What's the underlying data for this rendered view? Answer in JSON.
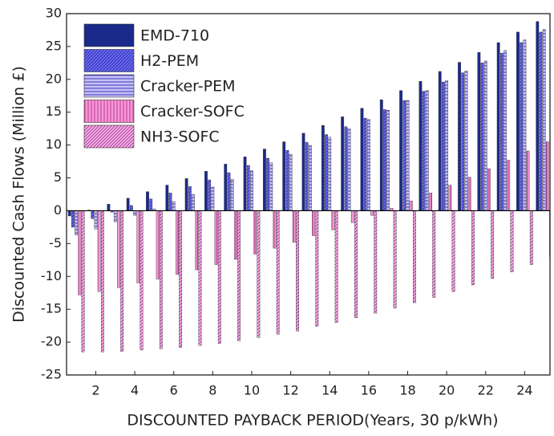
{
  "chart_data": {
    "type": "bar",
    "xlabel": "DISCOUNTED PAYBACK PERIOD(Years, 30 p/kWh)",
    "ylabel": "Discounted Cash Flows (Million £)",
    "x": [
      1,
      2,
      3,
      4,
      5,
      6,
      7,
      8,
      9,
      10,
      11,
      12,
      13,
      14,
      15,
      16,
      17,
      18,
      19,
      20,
      21,
      22,
      23,
      24,
      25
    ],
    "xlim": [
      0.5,
      25.3
    ],
    "xticks": [
      2,
      4,
      6,
      8,
      10,
      12,
      14,
      16,
      18,
      20,
      22,
      24
    ],
    "ylim": [
      -25,
      30
    ],
    "yticks": [
      -25,
      -20,
      -15,
      -10,
      -5,
      0,
      5,
      10,
      15,
      20,
      25,
      30
    ],
    "series": [
      {
        "name": "EMD-710",
        "color": "#1a2a8a",
        "values": [
          -0.8,
          0.1,
          1.0,
          1.9,
          2.9,
          3.9,
          4.9,
          6.0,
          7.1,
          8.2,
          9.4,
          10.5,
          11.8,
          13.0,
          14.3,
          15.6,
          16.9,
          18.3,
          19.7,
          21.2,
          22.6,
          24.1,
          25.6,
          27.2,
          28.8
        ]
      },
      {
        "name": "H2-PEM",
        "color": "#6a6aee",
        "values": [
          -2.5,
          -1.2,
          -0.2,
          0.8,
          1.8,
          2.7,
          3.7,
          4.7,
          5.8,
          6.9,
          8.0,
          9.2,
          10.4,
          11.6,
          12.8,
          14.1,
          15.4,
          16.8,
          18.2,
          19.6,
          21.0,
          22.5,
          24.0,
          25.6,
          27.2
        ]
      },
      {
        "name": "Cracker-PEM",
        "color": "#c8c0f8",
        "values": [
          -3.7,
          -2.8,
          -1.7,
          -0.7,
          0.3,
          1.4,
          2.5,
          3.6,
          4.8,
          6.1,
          7.3,
          8.6,
          9.9,
          11.2,
          12.5,
          13.9,
          15.3,
          16.8,
          18.3,
          19.8,
          21.3,
          22.8,
          24.4,
          26.0,
          27.6
        ]
      },
      {
        "name": "Cracker-SOFC",
        "color": "#f49ad4",
        "values": [
          -12.8,
          -12.3,
          -11.7,
          -11.0,
          -10.4,
          -9.7,
          -9.0,
          -8.2,
          -7.4,
          -6.6,
          -5.7,
          -4.8,
          -3.8,
          -2.9,
          -1.8,
          -0.7,
          0.4,
          1.5,
          2.7,
          3.9,
          5.1,
          6.4,
          7.7,
          9.1,
          10.5
        ]
      },
      {
        "name": "NH3-SOFC",
        "color": "#f0b4ea",
        "values": [
          -21.5,
          -21.5,
          -21.4,
          -21.2,
          -21.0,
          -20.8,
          -20.5,
          -20.2,
          -19.8,
          -19.3,
          -18.8,
          -18.3,
          -17.6,
          -17.0,
          -16.3,
          -15.6,
          -14.8,
          -14.0,
          -13.2,
          -12.3,
          -11.3,
          -10.3,
          -9.3,
          -8.2,
          -7.0
        ]
      }
    ],
    "legend": "upper-left"
  }
}
